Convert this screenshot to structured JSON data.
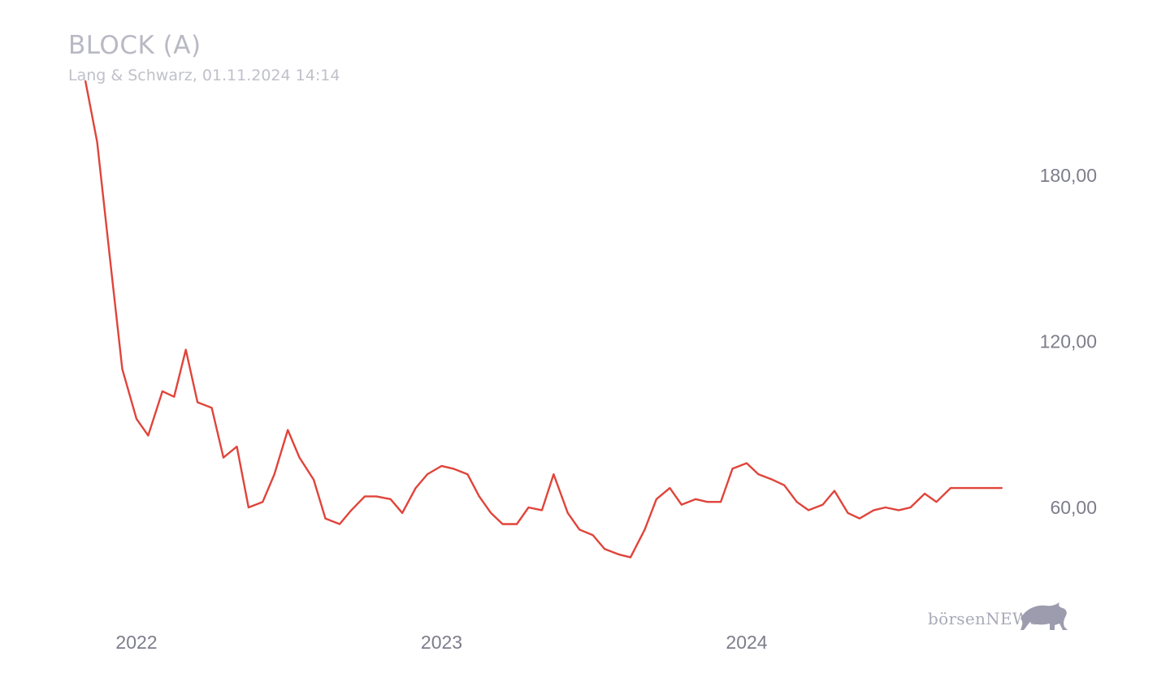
{
  "title": "BLOCK (A)",
  "subtitle": "Lang & Schwarz, 01.11.2024 14:14",
  "logo": {
    "text": "börsenNEWS",
    "icon": "bull-icon"
  },
  "colors": {
    "line": "#e0443a",
    "text": "#7d7d8c",
    "title": "#b9b9c4"
  },
  "chart_data": {
    "type": "line",
    "title": "BLOCK (A)",
    "subtitle": "Lang & Schwarz, 01.11.2024 14:14",
    "x_tick_labels": [
      "2022",
      "2023",
      "2024"
    ],
    "y_ticks": [
      60,
      120,
      180
    ],
    "y_tick_labels": [
      "60,00",
      "120,00",
      "180,00"
    ],
    "ylim": [
      20,
      220
    ],
    "grid": false,
    "legend": "none",
    "series": [
      {
        "x": [
          "2021-11-01",
          "2021-11-15",
          "2021-12-01",
          "2021-12-15",
          "2022-01-01",
          "2022-01-15",
          "2022-02-01",
          "2022-02-15",
          "2022-03-01",
          "2022-03-15",
          "2022-04-01",
          "2022-04-15",
          "2022-05-01",
          "2022-05-15",
          "2022-06-01",
          "2022-06-15",
          "2022-07-01",
          "2022-07-15",
          "2022-08-01",
          "2022-08-15",
          "2022-09-01",
          "2022-09-15",
          "2022-10-01",
          "2022-10-15",
          "2022-11-01",
          "2022-11-15",
          "2022-12-01",
          "2022-12-15",
          "2023-01-01",
          "2023-01-15",
          "2023-02-01",
          "2023-02-15",
          "2023-03-01",
          "2023-03-15",
          "2023-04-01",
          "2023-04-15",
          "2023-05-01",
          "2023-05-15",
          "2023-06-01",
          "2023-06-15",
          "2023-07-01",
          "2023-07-15",
          "2023-08-01",
          "2023-08-15",
          "2023-09-01",
          "2023-09-15",
          "2023-10-01",
          "2023-10-15",
          "2023-11-01",
          "2023-11-15",
          "2023-12-01",
          "2023-12-15",
          "2024-01-01",
          "2024-01-15",
          "2024-02-01",
          "2024-02-15",
          "2024-03-01",
          "2024-03-15",
          "2024-04-01",
          "2024-04-15",
          "2024-05-01",
          "2024-05-15",
          "2024-06-01",
          "2024-06-15",
          "2024-07-01",
          "2024-07-15",
          "2024-08-01",
          "2024-08-15",
          "2024-09-01",
          "2024-09-15",
          "2024-10-01",
          "2024-10-15",
          "2024-11-01"
        ],
        "values": [
          214,
          192,
          148,
          110,
          92,
          86,
          102,
          100,
          117,
          98,
          96,
          78,
          82,
          60,
          62,
          72,
          88,
          78,
          70,
          56,
          54,
          59,
          64,
          64,
          63,
          58,
          67,
          72,
          75,
          74,
          72,
          64,
          58,
          54,
          54,
          60,
          59,
          72,
          58,
          52,
          50,
          45,
          43,
          42,
          52,
          63,
          67,
          61,
          63,
          62,
          62,
          74,
          76,
          72,
          70,
          68,
          62,
          59,
          61,
          66,
          58,
          56,
          59,
          60,
          59,
          60,
          65,
          62,
          67,
          67,
          67,
          67,
          67
        ]
      }
    ]
  }
}
